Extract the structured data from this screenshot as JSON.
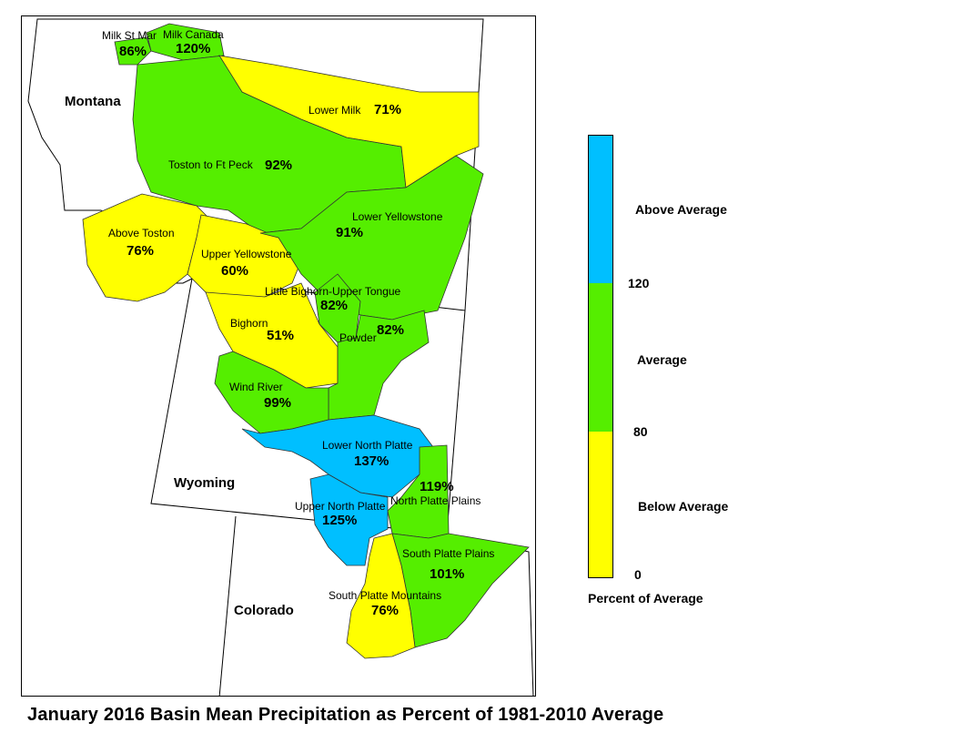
{
  "title": "January 2016 Basin Mean Precipitation as Percent of 1981-2010 Average",
  "colors": {
    "above": "#00bfff",
    "average": "#55ee00",
    "below": "#ffff00"
  },
  "states": {
    "montana": "Montana",
    "wyoming": "Wyoming",
    "colorado": "Colorado"
  },
  "basins": {
    "milk_st_mary": {
      "name": "Milk St Mar",
      "pct": "86%"
    },
    "milk_canada": {
      "name": "Milk Canada",
      "pct": "120%"
    },
    "lower_milk": {
      "name": "Lower Milk",
      "pct": "71%"
    },
    "toston_ft_peck": {
      "name": "Toston to Ft Peck",
      "pct": "92%"
    },
    "above_toston": {
      "name": "Above Toston",
      "pct": "76%"
    },
    "upper_yellowstone": {
      "name": "Upper Yellowstone",
      "pct": "60%"
    },
    "lower_yellowstone": {
      "name": "Lower Yellowstone",
      "pct": "91%"
    },
    "little_bighorn": {
      "name": "Little Bighorn-Upper Tongue",
      "pct": "82%"
    },
    "bighorn": {
      "name": "Bighorn",
      "pct": "51%"
    },
    "powder": {
      "name": "Powder",
      "pct": "82%"
    },
    "wind_river": {
      "name": "Wind River",
      "pct": "99%"
    },
    "lower_north_platte": {
      "name": "Lower North Platte",
      "pct": "137%"
    },
    "north_platte_plains": {
      "name": "North Platte Plains",
      "pct": "119%"
    },
    "upper_north_platte": {
      "name": "Upper North Platte",
      "pct": "125%"
    },
    "south_platte_plains": {
      "name": "South Platte Plains",
      "pct": "101%"
    },
    "south_platte_mountains": {
      "name": "South Platte Mountains",
      "pct": "76%"
    }
  },
  "legend": {
    "above": "Above Average",
    "average": "Average",
    "below": "Below Average",
    "tick_120": "120",
    "tick_80": "80",
    "tick_0": "0",
    "caption": "Percent of Average"
  }
}
